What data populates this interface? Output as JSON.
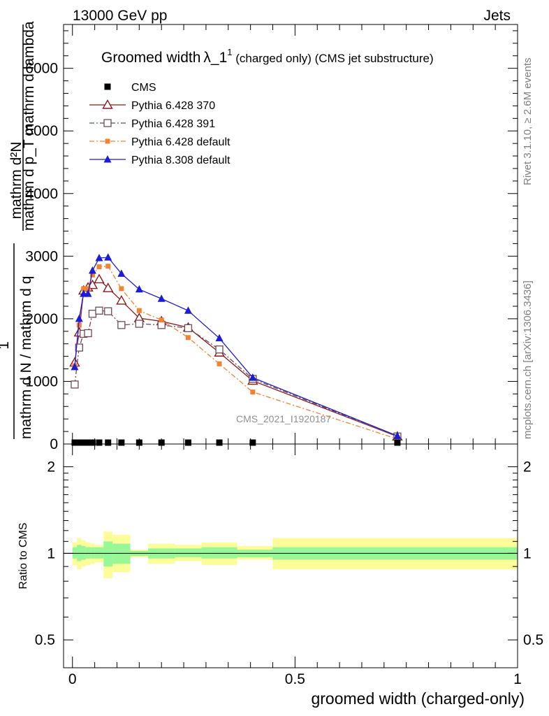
{
  "header": {
    "left": "13000 GeV pp",
    "right": "Jets"
  },
  "side": {
    "rivet": "Rivet 3.1.10, ≥ 2.6M events",
    "mcplots": "mcplots.cern.ch [arXiv:1306.3436]"
  },
  "watermark": "CMS_2021_I1920187",
  "colors": {
    "cms": "#000000",
    "p370": "#8b1a1a",
    "p391": "#6e4a55",
    "p6def": "#f4822f",
    "p8def": "#1c1cd8",
    "band_inner": "#98f898",
    "band_outer": "#fcfc98"
  },
  "chart_data": [
    {
      "type": "line",
      "panel": "main",
      "title": "Groomed width",
      "title_symbol": "λ_1",
      "title_sup": "1",
      "title_suffix": " (charged only) (CMS jet substructure)",
      "ylabel_num": "1",
      "ylabel_den": "mathrm d N / mathrm d q",
      "ylabel_frac_num": "mathrm d²N",
      "ylabel_frac_den": "mathrm d p_T mathrm d lambda",
      "xlim": [
        -0.02,
        1.0
      ],
      "ylim": [
        0,
        6700
      ],
      "yticks": [
        0,
        1000,
        2000,
        3000,
        4000,
        5000,
        6000
      ],
      "ytick_labels": [
        "0",
        "1000",
        "2000",
        "3000",
        "4000",
        "5000",
        "6000"
      ],
      "log_y": false,
      "grid": false,
      "legend_position": "top-left",
      "series": [
        {
          "name": "CMS",
          "marker": "square-filled",
          "x": [
            0.005,
            0.015,
            0.025,
            0.035,
            0.045,
            0.06,
            0.08,
            0.11,
            0.15,
            0.2,
            0.26,
            0.33,
            0.405,
            0.73
          ],
          "y": [
            5,
            5,
            5,
            5,
            5,
            5,
            5,
            5,
            5,
            5,
            5,
            5,
            5,
            5
          ]
        },
        {
          "name": "Pythia 6.428 370",
          "marker": "triangle-open",
          "x": [
            0.005,
            0.015,
            0.025,
            0.035,
            0.045,
            0.06,
            0.08,
            0.11,
            0.15,
            0.2,
            0.26,
            0.33,
            0.405,
            0.73
          ],
          "y": [
            1300,
            1780,
            2450,
            2500,
            2540,
            2630,
            2490,
            2290,
            2010,
            1960,
            1860,
            1460,
            1010,
            120
          ]
        },
        {
          "name": "Pythia 6.428 391",
          "marker": "square-open",
          "x": [
            0.005,
            0.015,
            0.025,
            0.035,
            0.045,
            0.06,
            0.08,
            0.11,
            0.15,
            0.2,
            0.26,
            0.33,
            0.405,
            0.73
          ],
          "y": [
            950,
            1540,
            1760,
            1770,
            2080,
            2130,
            2120,
            1900,
            1920,
            1900,
            1850,
            1510,
            1040,
            120
          ]
        },
        {
          "name": "Pythia 6.428 default",
          "marker": "square-filled-small",
          "x": [
            0.005,
            0.015,
            0.025,
            0.035,
            0.045,
            0.06,
            0.08,
            0.11,
            0.15,
            0.2,
            0.26,
            0.33,
            0.405,
            0.73
          ],
          "y": [
            1250,
            1900,
            2480,
            2480,
            2700,
            2830,
            2840,
            2480,
            2130,
            1980,
            1700,
            1280,
            830,
            80
          ]
        },
        {
          "name": "Pythia 8.308 default",
          "marker": "triangle-filled",
          "x": [
            0.005,
            0.015,
            0.025,
            0.035,
            0.045,
            0.06,
            0.08,
            0.11,
            0.15,
            0.2,
            0.26,
            0.33,
            0.405,
            0.73
          ],
          "y": [
            1230,
            2000,
            2400,
            2400,
            2770,
            2970,
            2980,
            2720,
            2470,
            2320,
            2130,
            1690,
            1060,
            130
          ]
        }
      ]
    },
    {
      "type": "area",
      "panel": "ratio",
      "ylabel": "Ratio to CMS",
      "xlabel": "groomed width (charged-only)",
      "xlim": [
        -0.02,
        1.0
      ],
      "ylim": [
        0.4,
        2.4
      ],
      "log_y": true,
      "yticks": [
        0.5,
        1,
        2
      ],
      "ytick_labels": [
        "0.5",
        "1",
        "2"
      ],
      "xticks": [
        0,
        0.5,
        1
      ],
      "xtick_labels": [
        "0",
        "0.5",
        "1"
      ],
      "bins": [
        {
          "lo": 0.0,
          "hi": 0.01,
          "inner": [
            0.96,
            1.05
          ],
          "outer": [
            0.91,
            1.09
          ]
        },
        {
          "lo": 0.01,
          "hi": 0.02,
          "inner": [
            0.94,
            1.07
          ],
          "outer": [
            0.88,
            1.13
          ]
        },
        {
          "lo": 0.02,
          "hi": 0.03,
          "inner": [
            0.95,
            1.06
          ],
          "outer": [
            0.9,
            1.11
          ]
        },
        {
          "lo": 0.03,
          "hi": 0.04,
          "inner": [
            0.96,
            1.05
          ],
          "outer": [
            0.91,
            1.09
          ]
        },
        {
          "lo": 0.04,
          "hi": 0.05,
          "inner": [
            0.96,
            1.05
          ],
          "outer": [
            0.92,
            1.08
          ]
        },
        {
          "lo": 0.05,
          "hi": 0.07,
          "inner": [
            0.96,
            1.05
          ],
          "outer": [
            0.93,
            1.07
          ]
        },
        {
          "lo": 0.07,
          "hi": 0.09,
          "inner": [
            0.9,
            1.1
          ],
          "outer": [
            0.82,
            1.19
          ]
        },
        {
          "lo": 0.09,
          "hi": 0.13,
          "inner": [
            0.92,
            1.08
          ],
          "outer": [
            0.86,
            1.16
          ]
        },
        {
          "lo": 0.13,
          "hi": 0.17,
          "inner": [
            0.98,
            1.02
          ],
          "outer": [
            0.97,
            1.03
          ]
        },
        {
          "lo": 0.17,
          "hi": 0.23,
          "inner": [
            0.96,
            1.04
          ],
          "outer": [
            0.92,
            1.08
          ]
        },
        {
          "lo": 0.23,
          "hi": 0.29,
          "inner": [
            0.97,
            1.04
          ],
          "outer": [
            0.94,
            1.07
          ]
        },
        {
          "lo": 0.29,
          "hi": 0.37,
          "inner": [
            0.96,
            1.05
          ],
          "outer": [
            0.91,
            1.09
          ]
        },
        {
          "lo": 0.37,
          "hi": 0.45,
          "inner": [
            0.97,
            1.03
          ],
          "outer": [
            0.95,
            1.06
          ]
        },
        {
          "lo": 0.45,
          "hi": 1.0,
          "inner": [
            0.95,
            1.05
          ],
          "outer": [
            0.88,
            1.13
          ]
        }
      ]
    }
  ]
}
